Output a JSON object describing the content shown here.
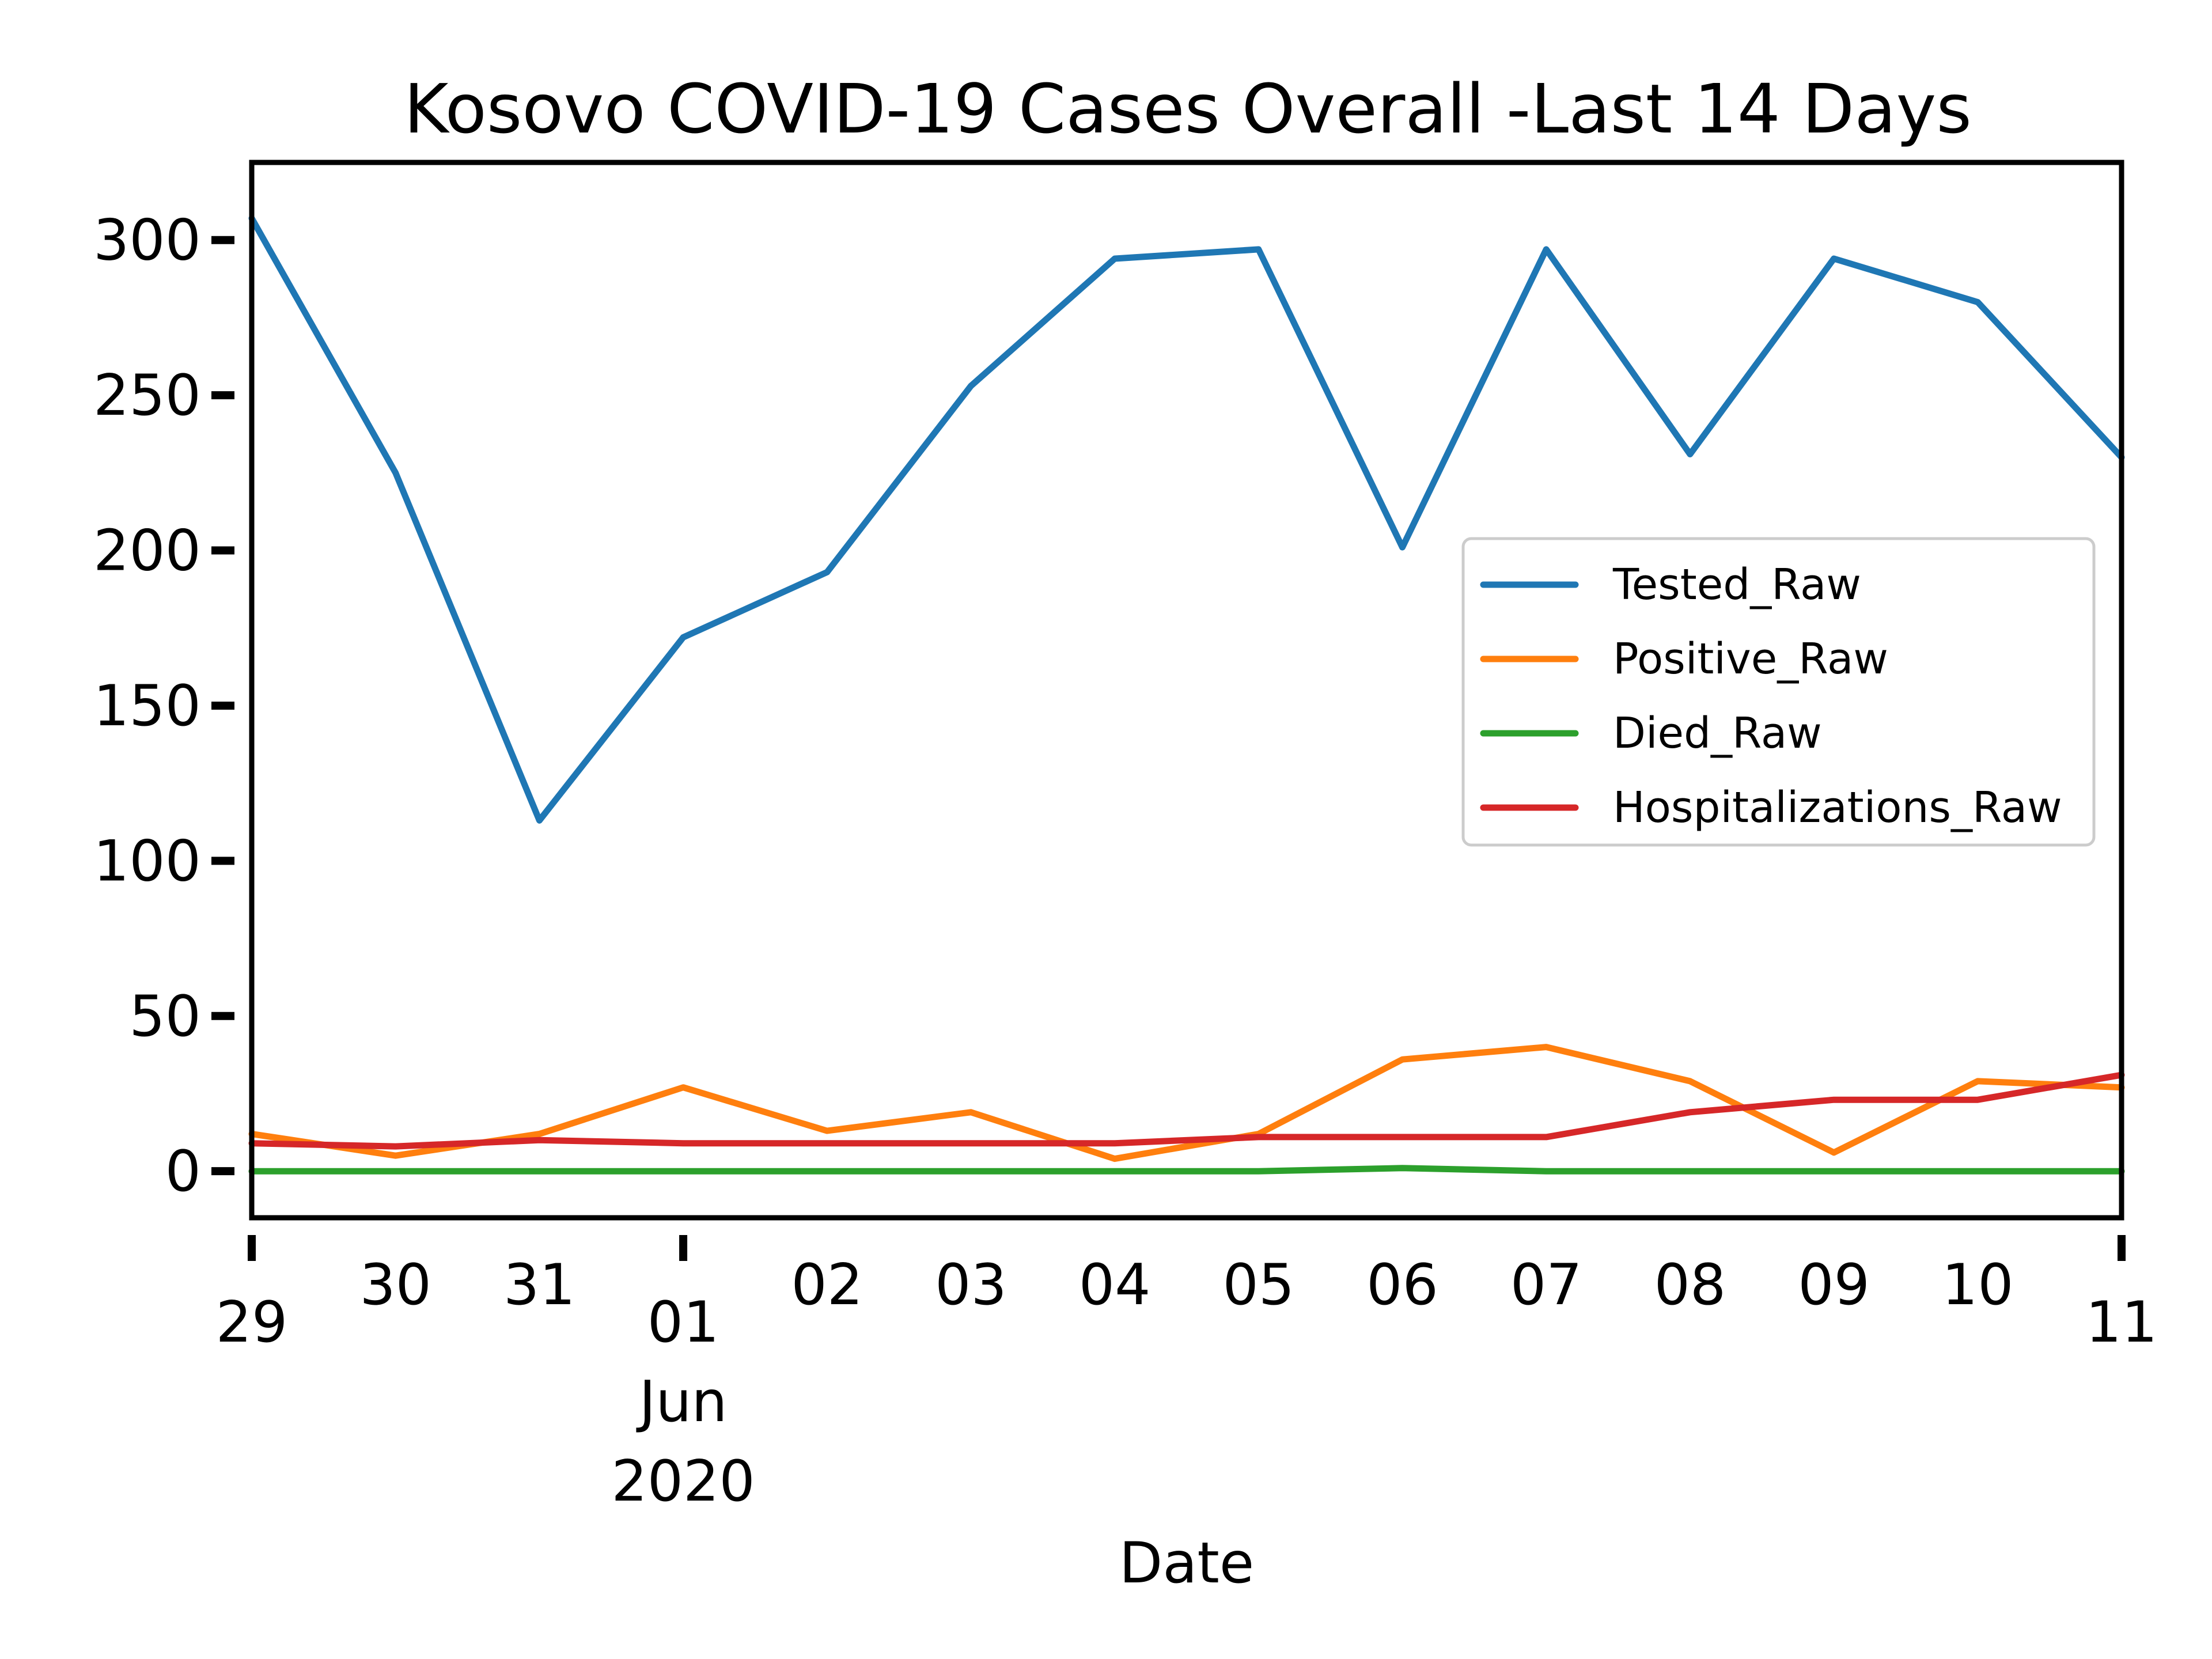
{
  "chart_data": {
    "type": "line",
    "title": "Kosovo COVID-19 Cases Overall -Last 14 Days",
    "xlabel": "Date",
    "ylabel": "",
    "x": [
      "2020-05-29",
      "2020-05-30",
      "2020-05-31",
      "2020-06-01",
      "2020-06-02",
      "2020-06-03",
      "2020-06-04",
      "2020-06-05",
      "2020-06-06",
      "2020-06-07",
      "2020-06-08",
      "2020-06-09",
      "2020-06-10",
      "2020-06-11"
    ],
    "xlim": [
      "2020-05-29",
      "2020-06-11"
    ],
    "x_ticks": [
      {
        "label": "29"
      },
      {
        "label": "30"
      },
      {
        "label": "31"
      },
      {
        "label": "01",
        "sublabel": [
          "Jun",
          "2020"
        ]
      },
      {
        "label": "02"
      },
      {
        "label": "03"
      },
      {
        "label": "04"
      },
      {
        "label": "05"
      },
      {
        "label": "06"
      },
      {
        "label": "07"
      },
      {
        "label": "08"
      },
      {
        "label": "09"
      },
      {
        "label": "10"
      },
      {
        "label": "11"
      }
    ],
    "ylim": [
      -15,
      325
    ],
    "y_ticks": [
      "0",
      "50",
      "100",
      "150",
      "200",
      "250",
      "300"
    ],
    "y_tick_values": [
      0,
      50,
      100,
      150,
      200,
      250,
      300
    ],
    "grid": false,
    "legend_position": "center-right",
    "series": [
      {
        "name": "Tested_Raw",
        "color": "#1f77b4",
        "values": [
          307,
          225,
          113,
          172,
          193,
          253,
          294,
          297,
          201,
          297,
          231,
          294,
          280,
          230
        ]
      },
      {
        "name": "Positive_Raw",
        "color": "#ff7f0e",
        "values": [
          12,
          5,
          12,
          27,
          13,
          19,
          4,
          12,
          36,
          40,
          29,
          6,
          29,
          27
        ]
      },
      {
        "name": "Died_Raw",
        "color": "#2ca02c",
        "values": [
          0,
          0,
          0,
          0,
          0,
          0,
          0,
          0,
          1,
          0,
          0,
          0,
          0,
          0
        ]
      },
      {
        "name": "Hospitalizations_Raw",
        "color": "#d62728",
        "values": [
          9,
          8,
          10,
          9,
          9,
          9,
          9,
          11,
          11,
          11,
          19,
          23,
          23,
          31
        ]
      }
    ]
  }
}
